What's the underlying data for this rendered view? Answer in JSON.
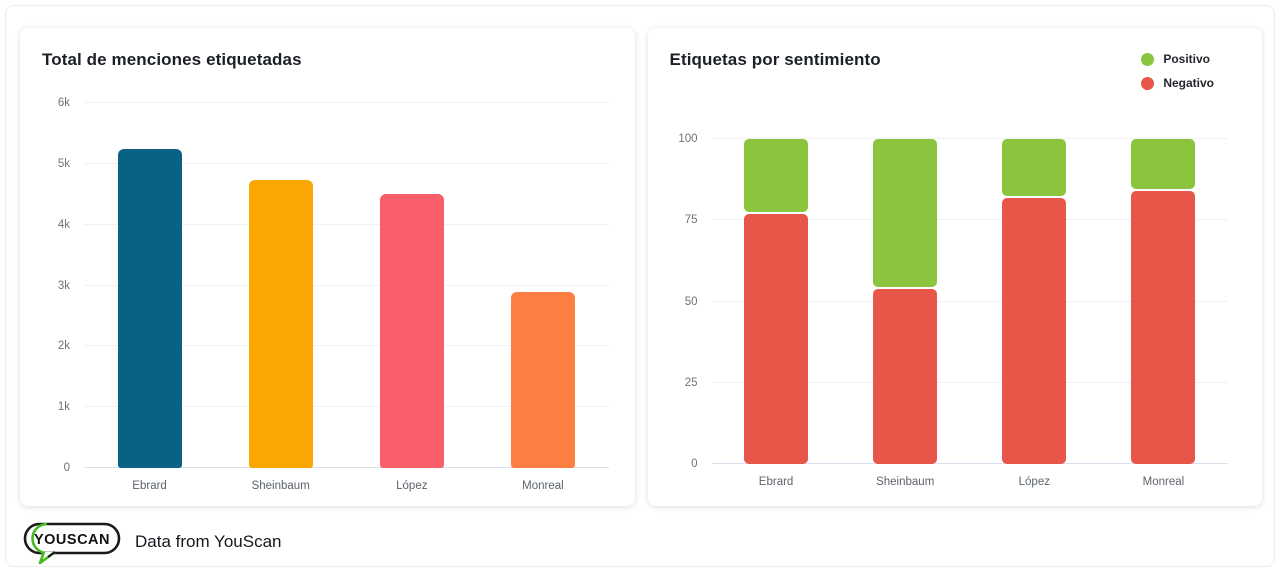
{
  "footer": {
    "logo_text": "YOUSCAN",
    "logo_green": "#46b820",
    "attribution": "Data from YouScan"
  },
  "chart_data": [
    {
      "type": "bar",
      "title": "Total de menciones etiquetadas",
      "categories": [
        "Ebrard",
        "Sheinbaum",
        "López",
        "Monreal"
      ],
      "values": [
        5250,
        4730,
        4500,
        2900
      ],
      "bar_colors": [
        "#096183",
        "#FCA603",
        "#F95F6B",
        "#FD7E41"
      ],
      "xlabel": "",
      "ylabel": "",
      "ylim": [
        0,
        6000
      ],
      "yticks": [
        0,
        1000,
        2000,
        3000,
        4000,
        5000,
        6000
      ],
      "ytick_labels": [
        "0",
        "1k",
        "2k",
        "3k",
        "4k",
        "5k",
        "6k"
      ],
      "grid": true,
      "legend": false
    },
    {
      "type": "bar",
      "subtype": "stacked_percent",
      "title": "Etiquetas por sentimiento",
      "categories": [
        "Ebrard",
        "Sheinbaum",
        "López",
        "Monreal"
      ],
      "series": [
        {
          "name": "Positivo",
          "color": "#8AC53D",
          "values": [
            23,
            46,
            18,
            16
          ]
        },
        {
          "name": "Negativo",
          "color": "#E85549",
          "values": [
            77,
            54,
            82,
            84
          ]
        }
      ],
      "xlabel": "",
      "ylabel": "",
      "ylim": [
        0,
        100
      ],
      "yticks": [
        0,
        25,
        50,
        75,
        100
      ],
      "ytick_labels": [
        "0",
        "25",
        "50",
        "75",
        "100"
      ],
      "grid": true,
      "legend_position": "top-right"
    }
  ]
}
